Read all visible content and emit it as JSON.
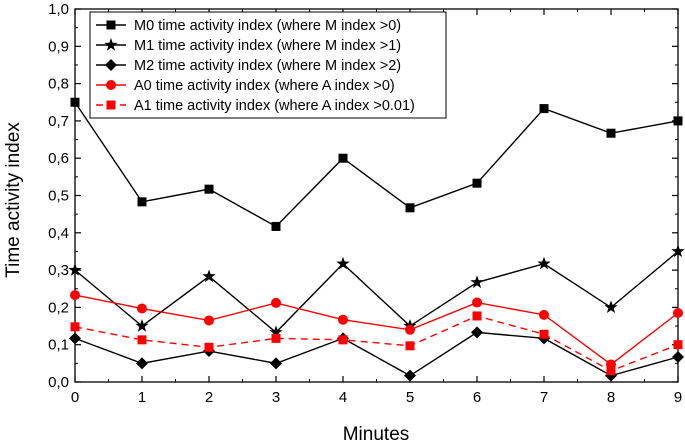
{
  "chart_data": {
    "type": "line",
    "title": "",
    "xlabel": "Minutes",
    "ylabel": "Time activity index",
    "xlim": [
      0,
      9
    ],
    "ylim": [
      0,
      1.0
    ],
    "x": [
      0,
      1,
      2,
      3,
      4,
      5,
      6,
      7,
      8,
      9
    ],
    "x_tick_labels": [
      "0",
      "1",
      "2",
      "3",
      "4",
      "5",
      "6",
      "7",
      "8",
      "9"
    ],
    "y_ticks": [
      0,
      0.1,
      0.2,
      0.3,
      0.4,
      0.5,
      0.6,
      0.7,
      0.8,
      0.9,
      1.0
    ],
    "y_tick_labels": [
      "0,0",
      "0,1",
      "0,2",
      "0,3",
      "0,4",
      "0,5",
      "0,6",
      "0,7",
      "0,8",
      "0,9",
      "1,0"
    ],
    "grid": false,
    "legend_position": "top-left",
    "series": [
      {
        "name": "M0 time activity index (where M index >0)",
        "color": "#000000",
        "marker": "square",
        "dash": "solid",
        "values": [
          0.75,
          0.483,
          0.517,
          0.417,
          0.6,
          0.467,
          0.533,
          0.733,
          0.667,
          0.7
        ]
      },
      {
        "name": "M1 time activity index (where M index >1)",
        "color": "#000000",
        "marker": "star",
        "dash": "solid",
        "values": [
          0.3,
          0.15,
          0.283,
          0.133,
          0.317,
          0.15,
          0.267,
          0.317,
          0.2,
          0.35
        ]
      },
      {
        "name": "M2 time activity index (where M index >2)",
        "color": "#000000",
        "marker": "diamond",
        "dash": "solid",
        "values": [
          0.117,
          0.05,
          0.083,
          0.05,
          0.117,
          0.017,
          0.133,
          0.117,
          0.017,
          0.067
        ]
      },
      {
        "name": "A0 time activity index (where A index >0)",
        "color": "#ff0000",
        "marker": "circle",
        "dash": "solid",
        "values": [
          0.233,
          0.197,
          0.165,
          0.212,
          0.167,
          0.14,
          0.213,
          0.18,
          0.047,
          0.185
        ]
      },
      {
        "name": "A1 time activity index (where A index >0.01)",
        "color": "#ff0000",
        "marker": "square",
        "dash": "dashed",
        "values": [
          0.148,
          0.113,
          0.093,
          0.117,
          0.113,
          0.097,
          0.177,
          0.128,
          0.03,
          0.1
        ]
      }
    ]
  }
}
